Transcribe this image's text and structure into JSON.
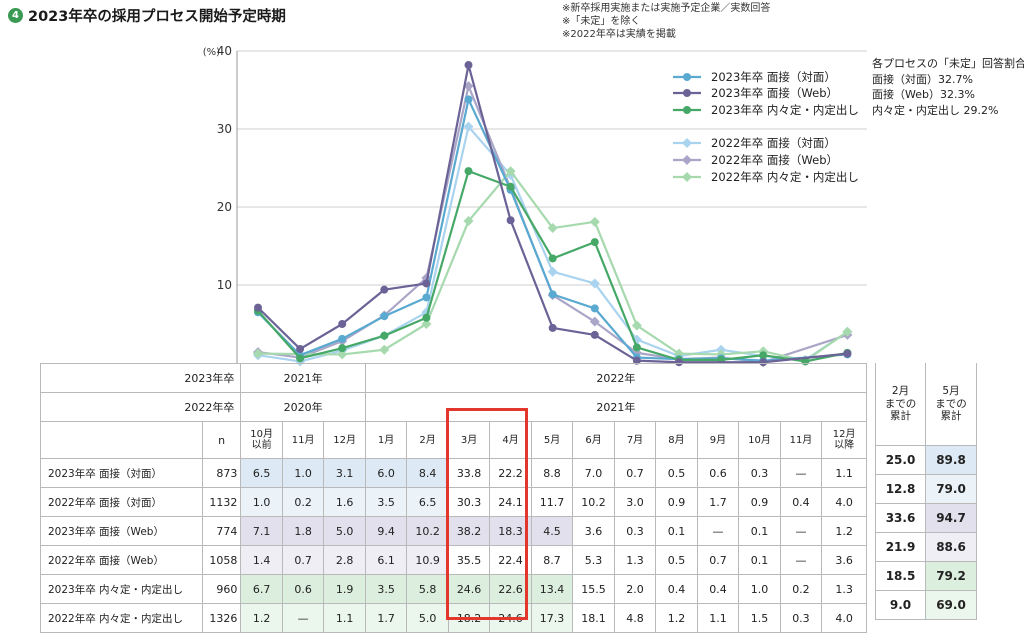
{
  "header": {
    "number": "4",
    "title": "2023年卒の採用プロセス開始予定時期",
    "notes": [
      "※新卒採用実施または実施予定企業／実数回答",
      "※「未定」を除く",
      "※2022年卒は実績を掲載"
    ]
  },
  "undecided_box": {
    "title": "各プロセスの「未定」回答割合",
    "items": [
      "面接（対面）32.7%",
      "面接（Web）32.3%",
      "内々定・内定出し 29.2%"
    ]
  },
  "chart_data": {
    "type": "line",
    "ylabel": "(%)",
    "ylim": [
      0,
      40
    ],
    "yticks": [
      10,
      20,
      30,
      40
    ],
    "categories": [
      "10月以前",
      "11月",
      "12月",
      "1月",
      "2月",
      "3月",
      "4月",
      "5月",
      "6月",
      "7月",
      "8月",
      "9月",
      "10月",
      "11月",
      "12月以降"
    ],
    "legend_position": "top-right",
    "series": [
      {
        "name": "2023年卒 面接（対面）",
        "color": "#5aa9d0",
        "marker": "circle",
        "values": [
          6.5,
          1.0,
          3.1,
          6.0,
          8.4,
          33.8,
          22.2,
          8.8,
          7.0,
          0.7,
          0.5,
          0.6,
          0.3,
          null,
          1.1
        ]
      },
      {
        "name": "2023年卒 面接（Web）",
        "color": "#6b6296",
        "marker": "circle",
        "values": [
          7.1,
          1.8,
          5.0,
          9.4,
          10.2,
          38.2,
          18.3,
          4.5,
          3.6,
          0.3,
          0.1,
          null,
          0.1,
          null,
          1.2
        ]
      },
      {
        "name": "2023年卒 内々定・内定出し",
        "color": "#46a866",
        "marker": "circle",
        "values": [
          6.7,
          0.6,
          1.9,
          3.5,
          5.8,
          24.6,
          22.6,
          13.4,
          15.5,
          2.0,
          0.4,
          0.4,
          1.0,
          0.2,
          1.3
        ]
      },
      {
        "name": "2022年卒 面接（対面）",
        "color": "#a9d3ee",
        "marker": "diamond",
        "values": [
          1.0,
          0.2,
          1.6,
          3.5,
          6.5,
          30.3,
          24.1,
          11.7,
          10.2,
          3.0,
          0.9,
          1.7,
          0.9,
          0.4,
          4.0
        ]
      },
      {
        "name": "2022年卒 面接（Web）",
        "color": "#aaa6c8",
        "marker": "diamond",
        "values": [
          1.4,
          0.7,
          2.8,
          6.1,
          10.9,
          35.5,
          22.4,
          8.7,
          5.3,
          1.3,
          0.5,
          0.7,
          0.1,
          null,
          3.6
        ]
      },
      {
        "name": "2022年卒 内々定・内定出し",
        "color": "#a6d9ad",
        "marker": "diamond",
        "values": [
          1.2,
          null,
          1.1,
          1.7,
          5.0,
          18.2,
          24.6,
          17.3,
          18.1,
          4.8,
          1.2,
          1.1,
          1.5,
          0.3,
          4.0
        ]
      }
    ]
  },
  "table": {
    "row1_label": "2023年卒",
    "row2_label": "2022年卒",
    "year_2021": "2021年",
    "year_2022": "2022年",
    "year_2020": "2020年",
    "year_2021b": "2021年",
    "n_label": "n",
    "months": [
      "10月\n以前",
      "11月",
      "12月",
      "1月",
      "2月",
      "3月",
      "4月",
      "5月",
      "6月",
      "7月",
      "8月",
      "9月",
      "10月",
      "11月",
      "12月\n以降"
    ],
    "rows": [
      {
        "label": "2023年卒 面接（対面）",
        "n": "873",
        "values": [
          "6.5",
          "1.0",
          "3.1",
          "6.0",
          "8.4",
          "33.8",
          "22.2",
          "8.8",
          "7.0",
          "0.7",
          "0.5",
          "0.6",
          "0.3",
          "—",
          "1.1"
        ]
      },
      {
        "label": "2022年卒 面接（対面）",
        "n": "1132",
        "values": [
          "1.0",
          "0.2",
          "1.6",
          "3.5",
          "6.5",
          "30.3",
          "24.1",
          "11.7",
          "10.2",
          "3.0",
          "0.9",
          "1.7",
          "0.9",
          "0.4",
          "4.0"
        ]
      },
      {
        "label": "2023年卒 面接（Web）",
        "n": "774",
        "values": [
          "7.1",
          "1.8",
          "5.0",
          "9.4",
          "10.2",
          "38.2",
          "18.3",
          "4.5",
          "3.6",
          "0.3",
          "0.1",
          "—",
          "0.1",
          "—",
          "1.2"
        ]
      },
      {
        "label": "2022年卒 面接（Web）",
        "n": "1058",
        "values": [
          "1.4",
          "0.7",
          "2.8",
          "6.1",
          "10.9",
          "35.5",
          "22.4",
          "8.7",
          "5.3",
          "1.3",
          "0.5",
          "0.7",
          "0.1",
          "—",
          "3.6"
        ]
      },
      {
        "label": "2023年卒 内々定・内定出し",
        "n": "960",
        "values": [
          "6.7",
          "0.6",
          "1.9",
          "3.5",
          "5.8",
          "24.6",
          "22.6",
          "13.4",
          "15.5",
          "2.0",
          "0.4",
          "0.4",
          "1.0",
          "0.2",
          "1.3"
        ]
      },
      {
        "label": "2022年卒 内々定・内定出し",
        "n": "1326",
        "values": [
          "1.2",
          "—",
          "1.1",
          "1.7",
          "5.0",
          "18.2",
          "24.6",
          "17.3",
          "18.1",
          "4.8",
          "1.2",
          "1.1",
          "1.5",
          "0.3",
          "4.0"
        ]
      }
    ],
    "cumulative": {
      "headers": [
        "2月\nまでの\n累計",
        "5月\nまでの\n累計"
      ],
      "rows": [
        [
          "25.0",
          "89.8"
        ],
        [
          "12.8",
          "79.0"
        ],
        [
          "33.6",
          "94.7"
        ],
        [
          "21.9",
          "88.6"
        ],
        [
          "18.5",
          "79.2"
        ],
        [
          "9.0",
          "69.0"
        ]
      ]
    }
  }
}
